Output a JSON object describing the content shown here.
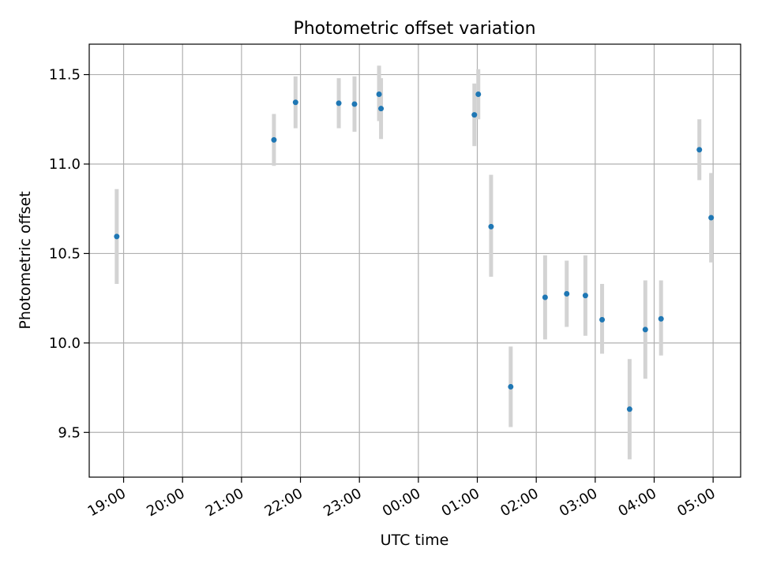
{
  "chart_data": {
    "type": "scatter",
    "title": "Photometric offset variation",
    "xlabel": "UTC time",
    "ylabel": "Photometric offset",
    "x_ticks": [
      "19:00",
      "20:00",
      "21:00",
      "22:00",
      "23:00",
      "00:00",
      "01:00",
      "02:00",
      "03:00",
      "04:00",
      "05:00"
    ],
    "y_ticks": [
      "9.5",
      "10.0",
      "10.5",
      "11.0",
      "11.5"
    ],
    "xlim": [
      "18:25",
      "05:28"
    ],
    "ylim": [
      9.25,
      11.67
    ],
    "grid": true,
    "marker_color": "#1f77b4",
    "errorbar_color": "#d3d3d3",
    "series": [
      {
        "points": [
          {
            "x": "18:53",
            "y": 10.595,
            "ylow": 10.33,
            "yhigh": 10.86
          },
          {
            "x": "21:33",
            "y": 11.135,
            "ylow": 10.99,
            "yhigh": 11.28
          },
          {
            "x": "21:55",
            "y": 11.345,
            "ylow": 11.2,
            "yhigh": 11.49
          },
          {
            "x": "22:39",
            "y": 11.34,
            "ylow": 11.2,
            "yhigh": 11.48
          },
          {
            "x": "22:55",
            "y": 11.335,
            "ylow": 11.18,
            "yhigh": 11.49
          },
          {
            "x": "23:20",
            "y": 11.39,
            "ylow": 11.24,
            "yhigh": 11.55
          },
          {
            "x": "23:22",
            "y": 11.31,
            "ylow": 11.14,
            "yhigh": 11.48
          },
          {
            "x": "00:57",
            "y": 11.275,
            "ylow": 11.1,
            "yhigh": 11.45
          },
          {
            "x": "01:01",
            "y": 11.39,
            "ylow": 11.25,
            "yhigh": 11.53
          },
          {
            "x": "01:14",
            "y": 10.65,
            "ylow": 10.37,
            "yhigh": 10.94
          },
          {
            "x": "01:34",
            "y": 9.755,
            "ylow": 9.53,
            "yhigh": 9.98
          },
          {
            "x": "02:09",
            "y": 10.255,
            "ylow": 10.02,
            "yhigh": 10.49
          },
          {
            "x": "02:31",
            "y": 10.275,
            "ylow": 10.09,
            "yhigh": 10.46
          },
          {
            "x": "02:50",
            "y": 10.265,
            "ylow": 10.04,
            "yhigh": 10.49
          },
          {
            "x": "03:07",
            "y": 10.13,
            "ylow": 9.94,
            "yhigh": 10.33
          },
          {
            "x": "03:35",
            "y": 9.63,
            "ylow": 9.35,
            "yhigh": 9.91
          },
          {
            "x": "03:51",
            "y": 10.075,
            "ylow": 9.8,
            "yhigh": 10.35
          },
          {
            "x": "04:07",
            "y": 10.135,
            "ylow": 9.93,
            "yhigh": 10.35
          },
          {
            "x": "04:46",
            "y": 11.08,
            "ylow": 10.91,
            "yhigh": 11.25
          },
          {
            "x": "04:58",
            "y": 10.7,
            "ylow": 10.45,
            "yhigh": 10.95
          }
        ]
      }
    ]
  }
}
